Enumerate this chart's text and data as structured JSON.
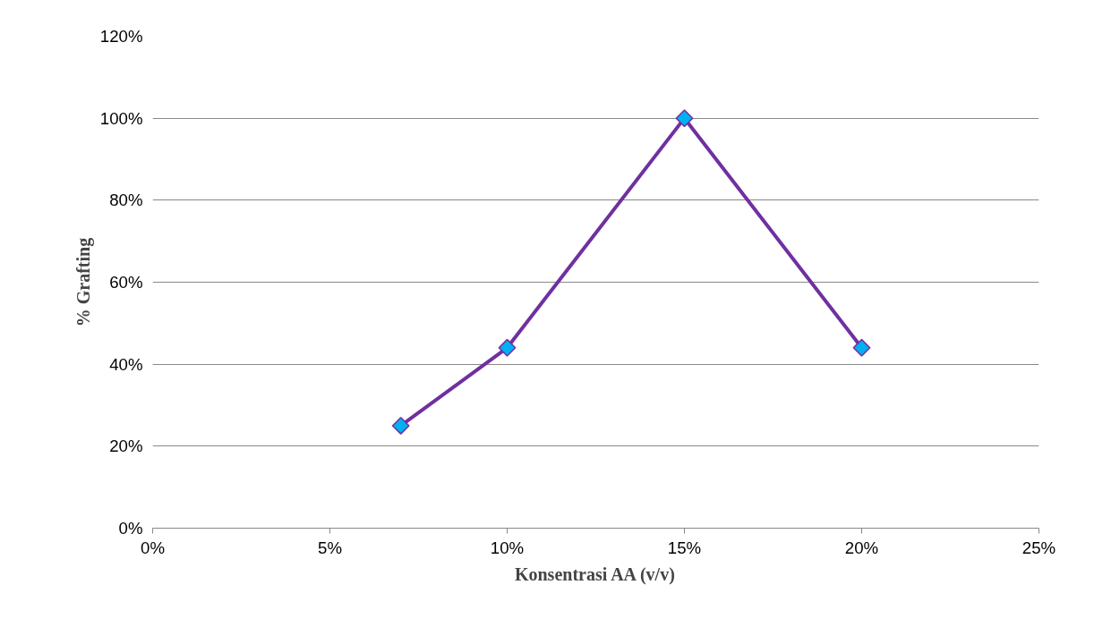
{
  "chart_data": {
    "type": "line",
    "xlabel": "Konsentrasi AA (v/v)",
    "ylabel": "% Grafting",
    "x": [
      7,
      10,
      15,
      20
    ],
    "series": [
      {
        "color": "#7030a0",
        "values": [
          25,
          44,
          100,
          44
        ]
      }
    ],
    "xlim": [
      0,
      25
    ],
    "ylim": [
      0,
      120
    ],
    "xticks": [
      {
        "value": 0,
        "label": "0%"
      },
      {
        "value": 5,
        "label": "5%"
      },
      {
        "value": 10,
        "label": "10%"
      },
      {
        "value": 15,
        "label": "15%"
      },
      {
        "value": 20,
        "label": "20%"
      },
      {
        "value": 25,
        "label": "25%"
      }
    ],
    "yticks": [
      {
        "value": 0,
        "label": "0%"
      },
      {
        "value": 20,
        "label": "20%"
      },
      {
        "value": 40,
        "label": "40%"
      },
      {
        "value": 60,
        "label": "60%"
      },
      {
        "value": 80,
        "label": "80%"
      },
      {
        "value": 100,
        "label": "100%"
      },
      {
        "value": 120,
        "label": "120%"
      }
    ],
    "grid": "y",
    "marker": "diamond"
  }
}
